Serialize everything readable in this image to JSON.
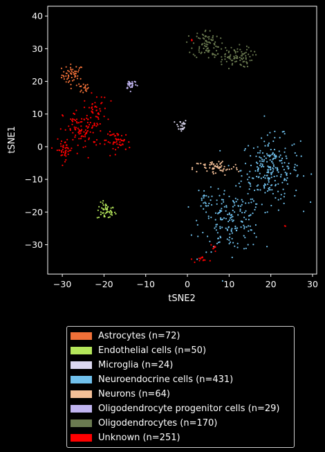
{
  "chart_data": {
    "type": "scatter",
    "title": "",
    "xlabel": "tSNE2",
    "ylabel": "tSNE1",
    "xlim": [
      -33.5,
      31
    ],
    "ylim": [
      -39,
      43
    ],
    "xticks": [
      -30,
      -20,
      -10,
      0,
      10,
      20,
      30
    ],
    "yticks": [
      -30,
      -20,
      -10,
      0,
      10,
      20,
      30,
      40
    ],
    "grid": false,
    "legend_position": "below",
    "series": [
      {
        "name": "Astrocytes (n=72)",
        "color": "#f07038",
        "n": 72,
        "clusters": [
          {
            "cx": -27.5,
            "cy": 22,
            "sx": 1.3,
            "sy": 1.6,
            "n": 55
          },
          {
            "cx": -25,
            "cy": 17.8,
            "sx": 0.7,
            "sy": 0.8,
            "n": 17
          }
        ]
      },
      {
        "name": "Endothelial cells (n=50)",
        "color": "#b4e65a",
        "n": 50,
        "clusters": [
          {
            "cx": -19.5,
            "cy": -19.8,
            "sx": 1.1,
            "sy": 1.3,
            "n": 50
          }
        ]
      },
      {
        "name": "Microglia (n=24)",
        "color": "#dcd8f0",
        "n": 24,
        "clusters": [
          {
            "cx": -1.5,
            "cy": 6.5,
            "sx": 0.7,
            "sy": 1.0,
            "n": 24
          }
        ]
      },
      {
        "name": "Neuroendocrine cells (n=431)",
        "color": "#70c0ec",
        "n": 431,
        "clusters": [
          {
            "cx": 20,
            "cy": -7,
            "sx": 3.5,
            "sy": 5,
            "n": 240
          },
          {
            "cx": 10.5,
            "cy": -23,
            "sx": 3.6,
            "sy": 4.5,
            "n": 170
          },
          {
            "cx": 4,
            "cy": -16,
            "sx": 0.8,
            "sy": 1.8,
            "n": 21
          }
        ]
      },
      {
        "name": "Neurons (n=64)",
        "color": "#f4c098",
        "n": 64,
        "clusters": [
          {
            "cx": 7,
            "cy": -6.5,
            "sx": 2.8,
            "sy": 1.2,
            "n": 64
          }
        ]
      },
      {
        "name": "Oligodendrocyte progenitor cells (n=29)",
        "color": "#c0b4f0",
        "n": 29,
        "clusters": [
          {
            "cx": -13.5,
            "cy": 19.2,
            "sx": 0.7,
            "sy": 0.8,
            "n": 29
          }
        ]
      },
      {
        "name": "Oligodendrocytes (n=170)",
        "color": "#6a7a50",
        "n": 170,
        "clusters": [
          {
            "cx": 4.5,
            "cy": 31.5,
            "sx": 1.6,
            "sy": 2.2,
            "n": 80
          },
          {
            "cx": 11,
            "cy": 27.5,
            "sx": 2.3,
            "sy": 1.6,
            "n": 90
          }
        ]
      },
      {
        "name": "Unknown (n=251)",
        "color": "#ff0000",
        "n": 251,
        "clusters": [
          {
            "cx": -25,
            "cy": 5,
            "sx": 2.4,
            "sy": 3.2,
            "n": 100
          },
          {
            "cx": -22,
            "cy": 11,
            "sx": 1.4,
            "sy": 2.5,
            "n": 40
          },
          {
            "cx": -29.5,
            "cy": -1,
            "sx": 1.0,
            "sy": 1.5,
            "n": 40
          },
          {
            "cx": -16.5,
            "cy": 1.5,
            "sx": 1.5,
            "sy": 1.5,
            "n": 48
          },
          {
            "cx": 4,
            "cy": -34.5,
            "sx": 0.8,
            "sy": 0.5,
            "n": 12
          },
          {
            "cx": 6.5,
            "cy": -30.8,
            "sx": 0.4,
            "sy": 0.6,
            "n": 6
          },
          {
            "cx": 23,
            "cy": -24,
            "sx": 0.2,
            "sy": 0.3,
            "n": 2
          },
          {
            "cx": 1,
            "cy": 32.5,
            "sx": 0.5,
            "sy": 0.3,
            "n": 3
          }
        ]
      }
    ]
  }
}
